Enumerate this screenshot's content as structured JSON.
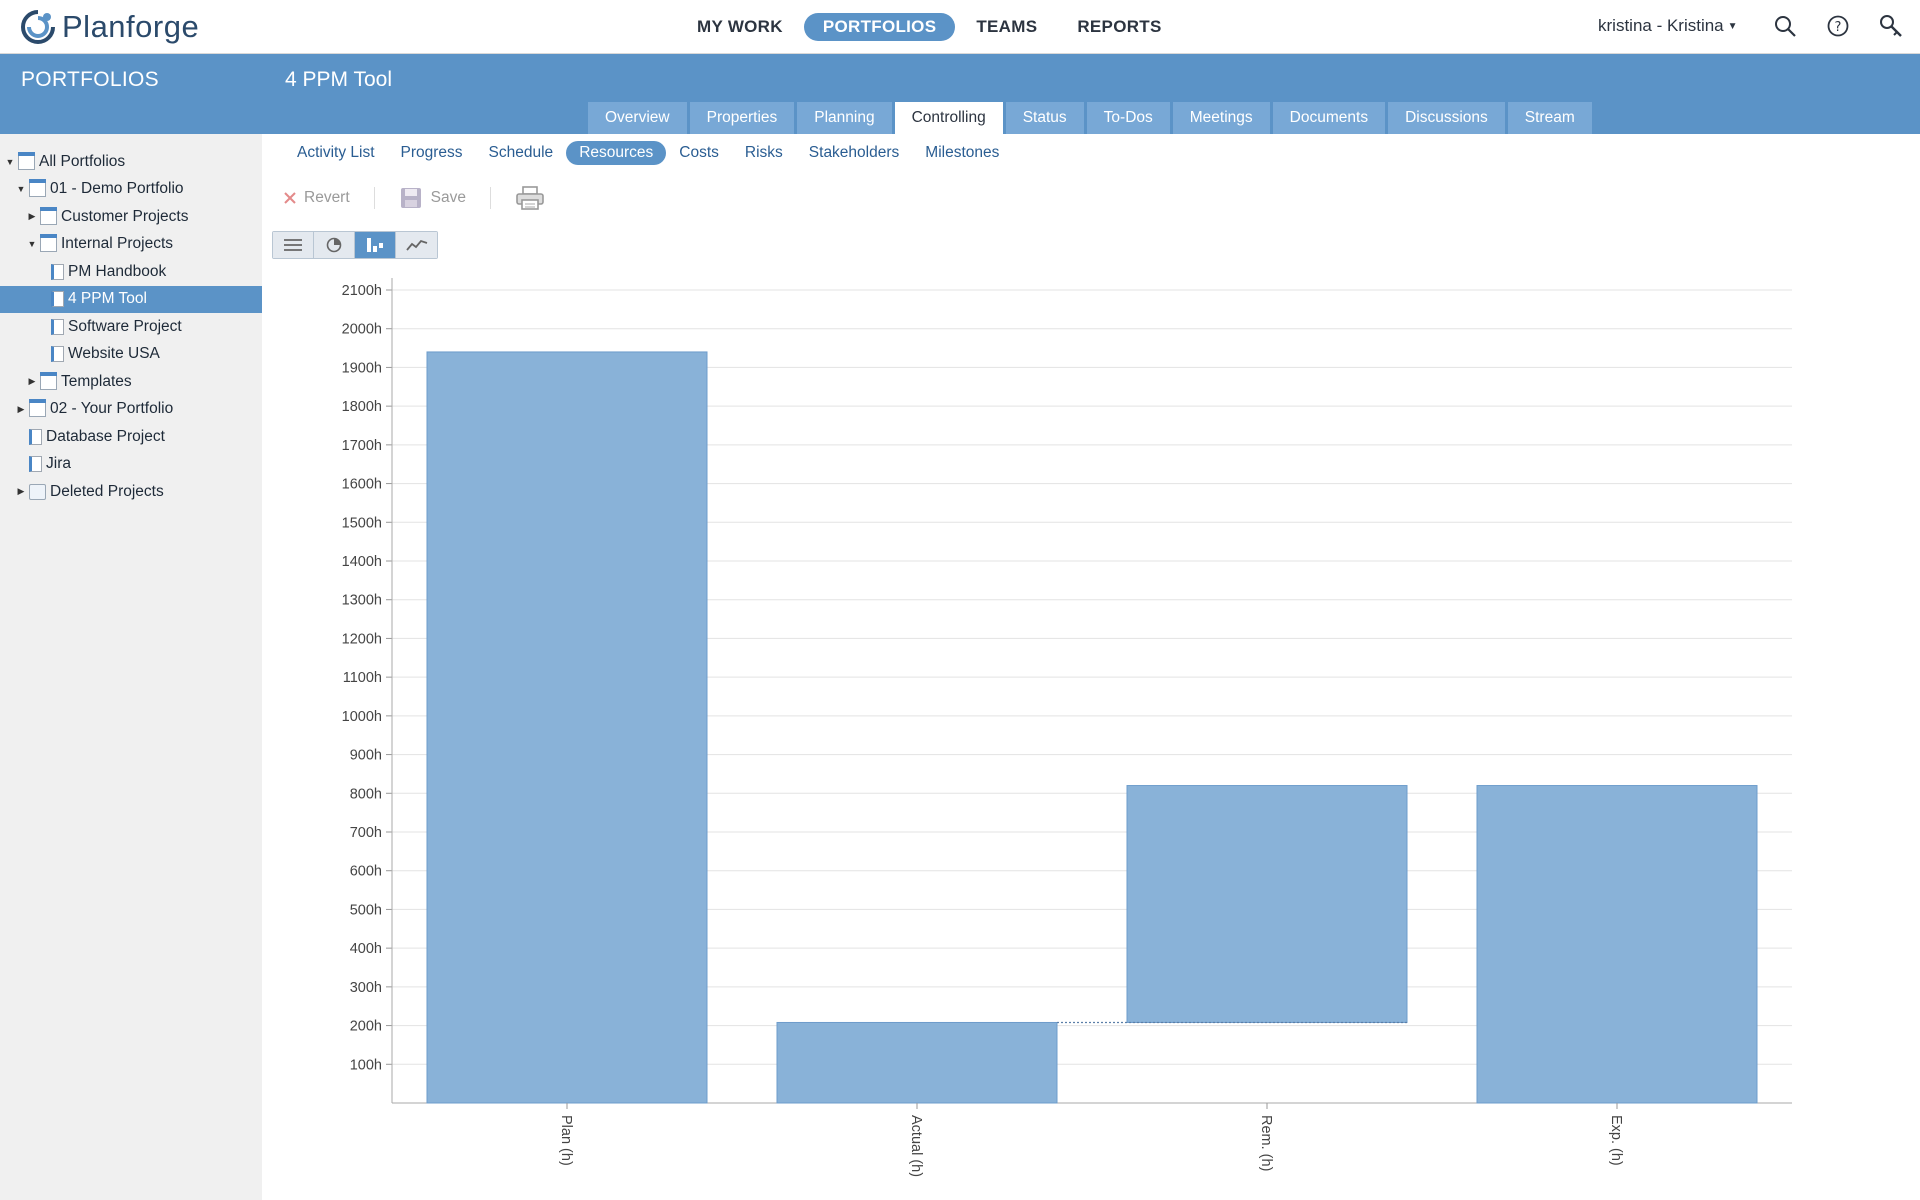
{
  "app": {
    "name": "Planforge"
  },
  "nav": {
    "items": [
      {
        "label": "MY WORK",
        "active": false
      },
      {
        "label": "PORTFOLIOS",
        "active": true
      },
      {
        "label": "TEAMS",
        "active": false
      },
      {
        "label": "REPORTS",
        "active": false
      }
    ],
    "user": "kristina - Kristina",
    "icons": [
      "search-icon",
      "help-icon",
      "admin-key-icon"
    ]
  },
  "sidebar": {
    "title": "PORTFOLIOS",
    "tree": [
      {
        "label": "All Portfolios",
        "level": 0,
        "toggle": "down",
        "icon": "portfolio",
        "selected": false
      },
      {
        "label": "01 - Demo Portfolio",
        "level": 1,
        "toggle": "down",
        "icon": "portfolio",
        "selected": false
      },
      {
        "label": "Customer Projects",
        "level": 2,
        "toggle": "right",
        "icon": "portfolio",
        "selected": false
      },
      {
        "label": "Internal Projects",
        "level": 2,
        "toggle": "down",
        "icon": "portfolio",
        "selected": false
      },
      {
        "label": "PM Handbook",
        "level": 3,
        "toggle": "",
        "icon": "project",
        "selected": false
      },
      {
        "label": "4 PPM Tool",
        "level": 3,
        "toggle": "",
        "icon": "project",
        "selected": true
      },
      {
        "label": "Software Project",
        "level": 3,
        "toggle": "",
        "icon": "project",
        "selected": false
      },
      {
        "label": "Website USA",
        "level": 3,
        "toggle": "",
        "icon": "project",
        "selected": false
      },
      {
        "label": "Templates",
        "level": 2,
        "toggle": "right",
        "icon": "portfolio",
        "selected": false
      },
      {
        "label": "02 - Your Portfolio",
        "level": 1,
        "toggle": "right",
        "icon": "portfolio",
        "selected": false
      },
      {
        "label": "Database Project",
        "level": 1,
        "toggle": "",
        "icon": "project",
        "selected": false
      },
      {
        "label": "Jira",
        "level": 1,
        "toggle": "",
        "icon": "project",
        "selected": false
      },
      {
        "label": "Deleted Projects",
        "level": 1,
        "toggle": "right",
        "icon": "deleted",
        "selected": false
      }
    ]
  },
  "project": {
    "title": "4 PPM Tool"
  },
  "tabs": [
    {
      "label": "Overview",
      "active": false
    },
    {
      "label": "Properties",
      "active": false
    },
    {
      "label": "Planning",
      "active": false
    },
    {
      "label": "Controlling",
      "active": true
    },
    {
      "label": "Status",
      "active": false
    },
    {
      "label": "To-Dos",
      "active": false
    },
    {
      "label": "Meetings",
      "active": false
    },
    {
      "label": "Documents",
      "active": false
    },
    {
      "label": "Discussions",
      "active": false
    },
    {
      "label": "Stream",
      "active": false
    }
  ],
  "subtabs": [
    {
      "label": "Activity List",
      "active": false
    },
    {
      "label": "Progress",
      "active": false
    },
    {
      "label": "Schedule",
      "active": false
    },
    {
      "label": "Resources",
      "active": true
    },
    {
      "label": "Costs",
      "active": false
    },
    {
      "label": "Risks",
      "active": false
    },
    {
      "label": "Stakeholders",
      "active": false
    },
    {
      "label": "Milestones",
      "active": false
    }
  ],
  "toolbar": {
    "revert_label": "Revert",
    "save_label": "Save"
  },
  "view_buttons": [
    {
      "name": "list-view-icon",
      "active": false
    },
    {
      "name": "pie-view-icon",
      "active": false
    },
    {
      "name": "bar-view-icon",
      "active": true
    },
    {
      "name": "line-view-icon",
      "active": false
    }
  ],
  "colors": {
    "accent": "#5b93c7",
    "bar": "#89b2d8",
    "bar_border": "#6d9ccb"
  },
  "chart_data": {
    "type": "bar",
    "subtype": "waterfall",
    "categories": [
      "Plan (h)",
      "Actual (h)",
      "Rem. (h)",
      "Exp. (h)"
    ],
    "bars": [
      {
        "category": "Plan (h)",
        "base": 0,
        "top": 1940
      },
      {
        "category": "Actual (h)",
        "base": 0,
        "top": 208
      },
      {
        "category": "Rem. (h)",
        "base": 208,
        "top": 820
      },
      {
        "category": "Exp. (h)",
        "base": 0,
        "top": 820
      }
    ],
    "y_ticks": [
      100,
      200,
      300,
      400,
      500,
      600,
      700,
      800,
      900,
      1000,
      1100,
      1200,
      1300,
      1400,
      1500,
      1600,
      1700,
      1800,
      1900,
      2000,
      2100
    ],
    "tick_suffix": "h",
    "ylim": [
      0,
      2100
    ],
    "grid": true,
    "connector": {
      "from": "Actual (h)",
      "to": "Rem. (h)",
      "value": 208,
      "style": "dotted"
    }
  }
}
